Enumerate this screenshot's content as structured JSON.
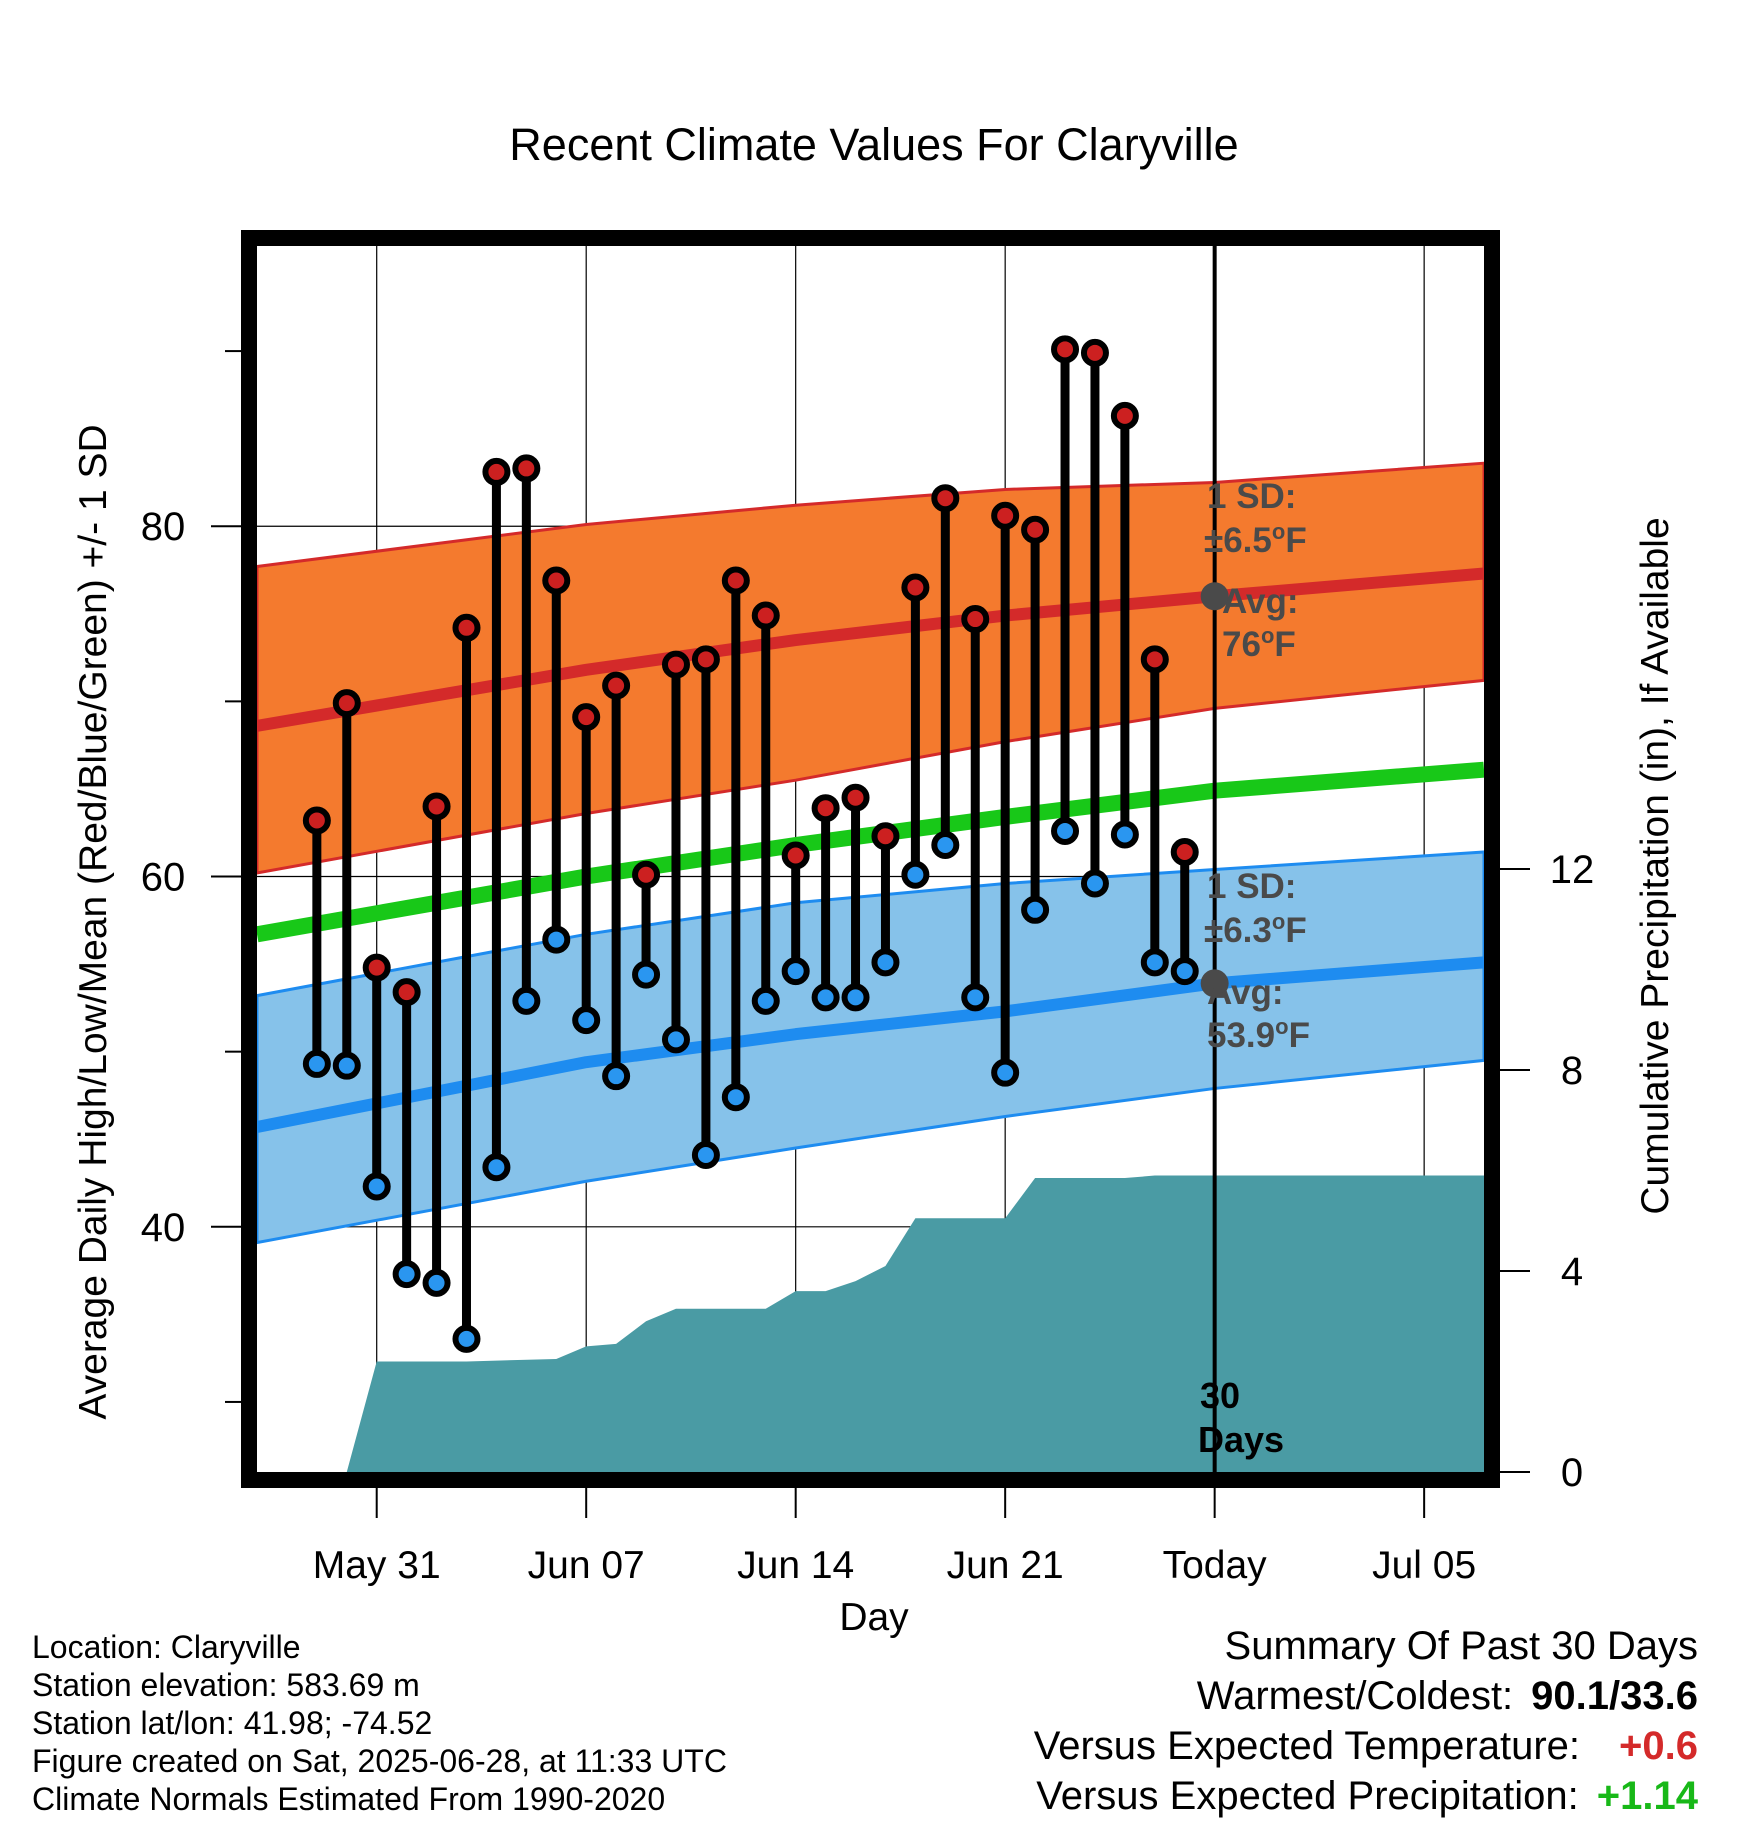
{
  "title": "Recent Climate Values For Claryville",
  "xlabel": "Day",
  "ylabel_left": "Average Daily High/Low/Mean (Red/Blue/Green) +/- 1 SD",
  "ylabel_right": "Cumulative Precipitation (in), If Available",
  "colors": {
    "high_band": "#f47a2e",
    "high_line": "#d42a2a",
    "low_band": "#86c2ea",
    "low_line": "#1e8cf0",
    "mean_line": "#18c818",
    "precip": "#4a9ba4",
    "high_dot": "#cc2020",
    "low_dot": "#2a96f0",
    "avg_marker": "#4a4a4a",
    "annotation": "#4a4a4a",
    "dep_temp": "#d42a2a",
    "dep_precip": "#18b818"
  },
  "annotations": {
    "high_sd_1": "1 SD:",
    "high_sd_2": "±6.5",
    "high_sd_unit": "F",
    "high_avg_1": "Avg:",
    "high_avg_2": "76",
    "high_avg_unit": "F",
    "low_sd_1": "1 SD:",
    "low_sd_2": "±6.3",
    "low_sd_unit": "F",
    "low_avg_1": "Avg:",
    "low_avg_2": "53.9",
    "low_avg_unit": "F",
    "degree": "o",
    "window_1": "30",
    "window_2": "Days"
  },
  "meta": {
    "location": "Location: Claryville",
    "elevation": "Station elevation: 583.69 m",
    "latlon": "Station lat/lon: 41.98; -74.52",
    "created": "Figure created on Sat, 2025-06-28, at 11:33 UTC",
    "normals": "Climate Normals Estimated From 1990-2020"
  },
  "summary": {
    "title": "Summary Of Past 30 Days",
    "warmest_label": "Warmest/Coldest:",
    "warmest_value": "90.1/33.6",
    "temp_label": "Versus Expected Temperature:",
    "temp_value": "+0.6",
    "precip_label": "Versus Expected Precipitation:",
    "precip_value": "+1.14"
  },
  "chart_data": {
    "type": "line",
    "title": "Recent Climate Values For Claryville",
    "xlabel": "Day",
    "ylabel": "Average Daily High/Low/Mean (Red/Blue/Green) +/- 1 SD",
    "y2label": "Cumulative Precipitation (in), If Available",
    "x_range": [
      "2025-05-27",
      "2025-07-07"
    ],
    "xtick_dates": [
      "2025-05-31",
      "2025-06-07",
      "2025-06-14",
      "2025-06-21",
      "2025-06-28",
      "2025-07-05"
    ],
    "xtick_labels": [
      "May 31",
      "Jun 07",
      "Jun 14",
      "Jun 21",
      "Today",
      "Jul 05"
    ],
    "today": "2025-06-28",
    "ylim": [
      26,
      96
    ],
    "yticks": [
      40,
      60,
      80
    ],
    "y2lim": [
      0,
      24.4
    ],
    "y2ticks": [
      0,
      4,
      8,
      12
    ],
    "grid": true,
    "normal_high": {
      "x": [
        "2025-05-27",
        "2025-06-07",
        "2025-06-14",
        "2025-06-21",
        "2025-06-28",
        "2025-07-07"
      ],
      "mean": [
        68.6,
        71.8,
        73.5,
        74.9,
        76.0,
        77.3
      ],
      "upper": [
        77.7,
        80.1,
        81.2,
        82.1,
        82.5,
        83.6
      ],
      "lower": [
        60.2,
        63.6,
        65.5,
        67.7,
        69.6,
        71.2
      ]
    },
    "normal_mean": {
      "x": [
        "2025-05-27",
        "2025-06-07",
        "2025-06-14",
        "2025-06-21",
        "2025-06-28",
        "2025-07-07"
      ],
      "values": [
        56.7,
        60.0,
        61.8,
        63.4,
        64.9,
        66.1
      ]
    },
    "normal_low": {
      "x": [
        "2025-05-27",
        "2025-06-07",
        "2025-06-14",
        "2025-06-21",
        "2025-06-28",
        "2025-07-07"
      ],
      "mean": [
        45.7,
        49.4,
        51.0,
        52.3,
        53.9,
        55.1
      ],
      "upper": [
        53.2,
        56.7,
        58.5,
        59.6,
        60.4,
        61.4
      ],
      "lower": [
        39.1,
        42.6,
        44.5,
        46.3,
        47.9,
        49.5
      ]
    },
    "daily": {
      "x": [
        "2025-05-29",
        "2025-05-30",
        "2025-05-31",
        "2025-06-01",
        "2025-06-02",
        "2025-06-03",
        "2025-06-04",
        "2025-06-05",
        "2025-06-06",
        "2025-06-07",
        "2025-06-08",
        "2025-06-09",
        "2025-06-10",
        "2025-06-11",
        "2025-06-12",
        "2025-06-13",
        "2025-06-14",
        "2025-06-15",
        "2025-06-16",
        "2025-06-17",
        "2025-06-18",
        "2025-06-19",
        "2025-06-20",
        "2025-06-21",
        "2025-06-22",
        "2025-06-23",
        "2025-06-24",
        "2025-06-25",
        "2025-06-26",
        "2025-06-27"
      ],
      "high": [
        63.2,
        69.9,
        54.8,
        53.4,
        64.0,
        74.2,
        83.1,
        83.3,
        76.9,
        69.1,
        70.9,
        60.1,
        72.1,
        72.4,
        76.9,
        74.9,
        61.2,
        63.9,
        64.5,
        62.3,
        76.5,
        81.6,
        74.7,
        80.6,
        79.8,
        90.1,
        89.9,
        86.3,
        72.4,
        61.4
      ],
      "low": [
        49.3,
        49.2,
        42.3,
        37.3,
        36.8,
        33.6,
        43.4,
        52.9,
        56.4,
        51.8,
        48.6,
        54.4,
        50.7,
        44.1,
        47.4,
        52.9,
        54.6,
        53.1,
        53.1,
        55.1,
        60.1,
        61.8,
        53.1,
        48.8,
        58.1,
        62.6,
        59.6,
        62.4,
        55.1,
        54.6
      ]
    },
    "precip_cumulative": {
      "x": [
        "2025-05-29",
        "2025-05-30",
        "2025-05-31",
        "2025-06-03",
        "2025-06-06",
        "2025-06-07",
        "2025-06-08",
        "2025-06-09",
        "2025-06-10",
        "2025-06-13",
        "2025-06-14",
        "2025-06-15",
        "2025-06-16",
        "2025-06-17",
        "2025-06-18",
        "2025-06-21",
        "2025-06-22",
        "2025-06-25",
        "2025-06-26",
        "2025-07-07"
      ],
      "values": [
        0,
        0,
        2.2,
        2.2,
        2.25,
        2.5,
        2.55,
        3.0,
        3.25,
        3.25,
        3.6,
        3.6,
        3.8,
        4.1,
        5.05,
        5.05,
        5.85,
        5.85,
        5.9,
        5.9
      ]
    }
  }
}
